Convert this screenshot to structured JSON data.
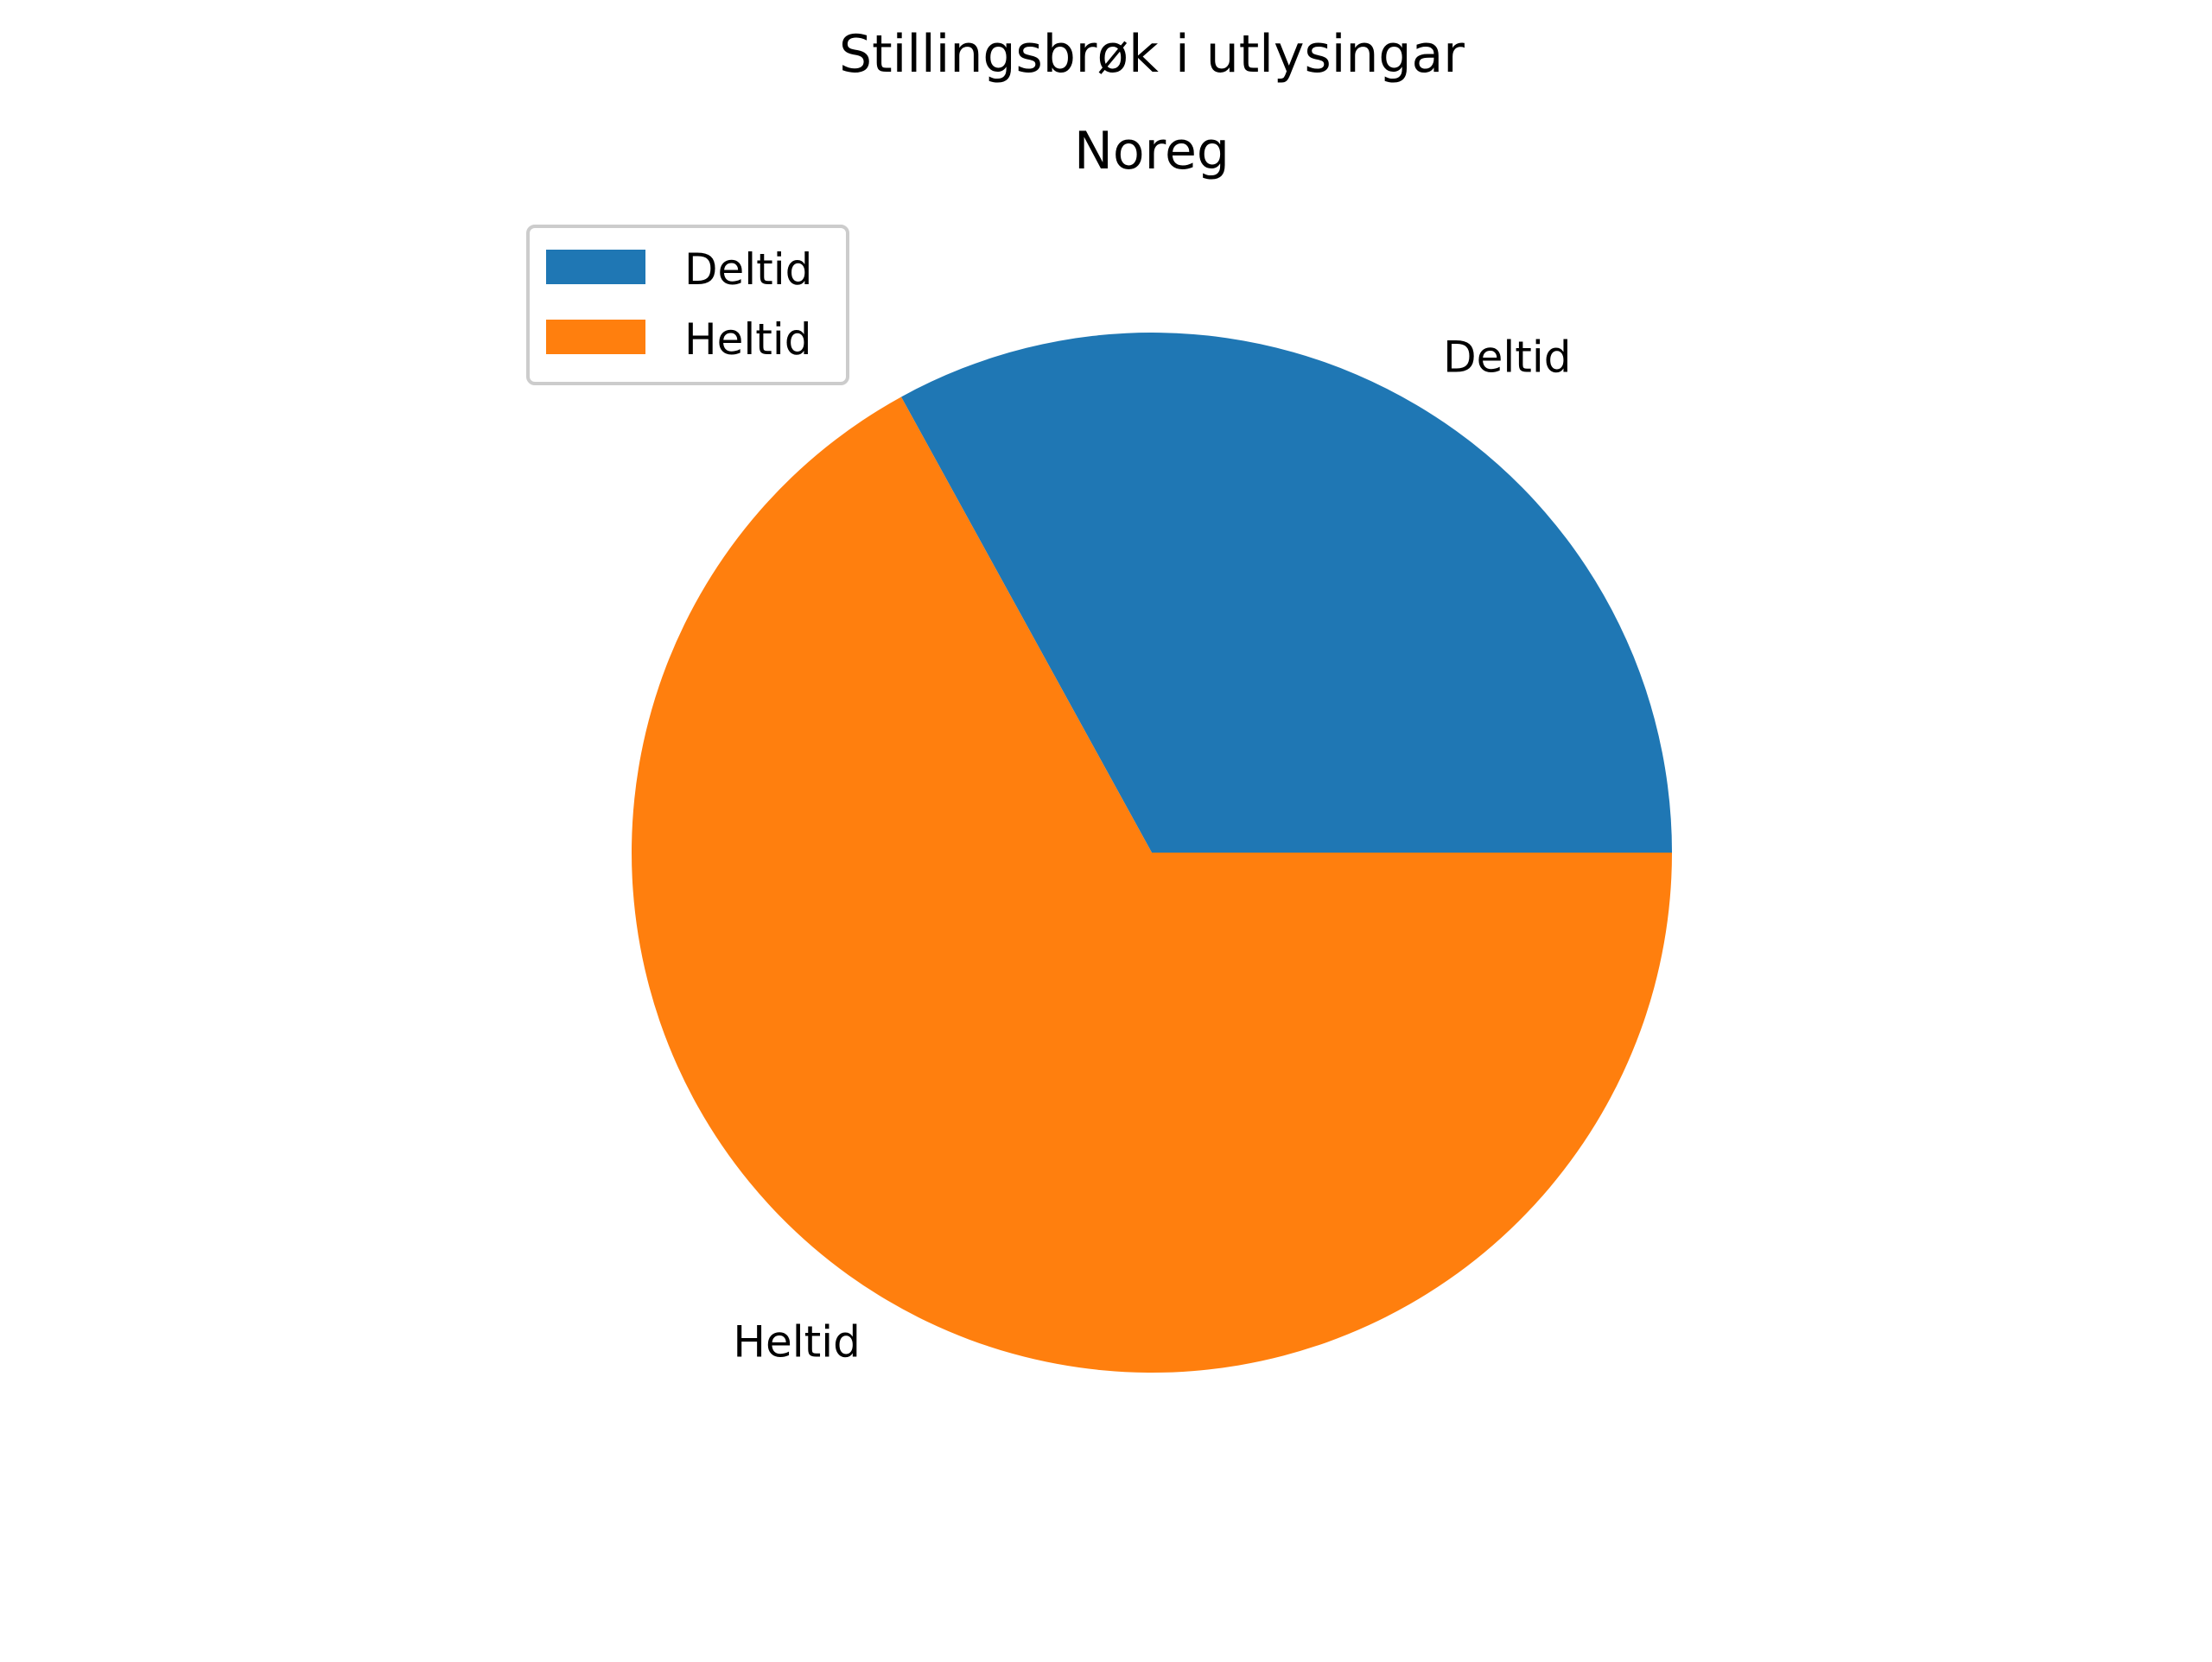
{
  "chart_data": {
    "type": "pie",
    "title": "Stillingsbrøk i utlysingar",
    "subtitle": "Noreg",
    "categories": [
      "Deltid",
      "Heltid"
    ],
    "values": [
      33,
      67
    ],
    "unit": "%",
    "colors": [
      "#1f77b4",
      "#ff7f0e"
    ],
    "start_angle_deg": 0,
    "direction": "counterclockwise",
    "legend": {
      "placement": "upper-left",
      "entries": [
        "Deltid",
        "Heltid"
      ]
    }
  }
}
